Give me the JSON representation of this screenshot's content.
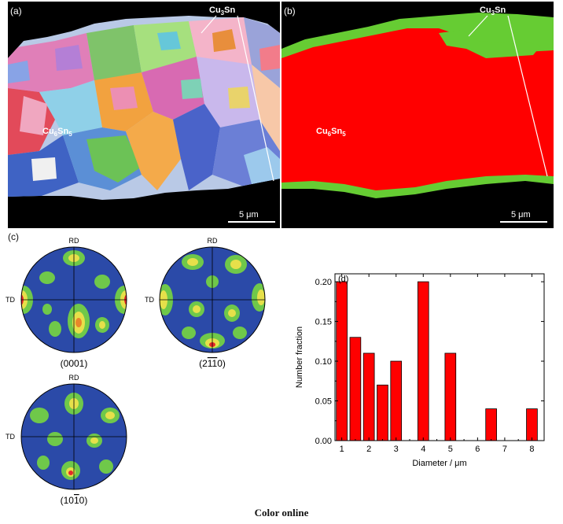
{
  "panel_a": {
    "label": "(a)",
    "phase_top_main": "Cu",
    "phase_top_sub": "3",
    "phase_top_tail": "Sn",
    "phase_mid_main": "Cu",
    "phase_mid_sub": "6",
    "phase_mid_tail": "Sn",
    "phase_mid_sub2": "5",
    "scale": "5 μm"
  },
  "panel_b": {
    "label": "(b)",
    "phase_top_main": "Cu",
    "phase_top_sub": "3",
    "phase_top_tail": "Sn",
    "phase_mid_main": "Cu",
    "phase_mid_sub": "6",
    "phase_mid_tail": "Sn",
    "phase_mid_sub2": "5",
    "scale": "5 μm",
    "colors": {
      "background": "#000000",
      "main": "#ff0000",
      "rim": "#66cc33"
    }
  },
  "panel_c": {
    "label": "(c)",
    "poles": [
      {
        "rd": "RD",
        "td": "TD",
        "caption": "(0001)"
      },
      {
        "rd": "RD",
        "td": "TD",
        "caption_pre": "(2",
        "caption_bar": "11",
        "caption_post": "0)"
      },
      {
        "rd": "RD",
        "td": "TD",
        "caption_pre": "(10",
        "caption_bar": "1",
        "caption_post": "0)"
      }
    ]
  },
  "chart_data": {
    "type": "bar",
    "panel_label": "(d)",
    "xlabel": "Diameter / μm",
    "ylabel": "Number fraction",
    "xlim": [
      0.75,
      8.45
    ],
    "ylim": [
      0,
      0.21
    ],
    "xticks": [
      "1",
      "2",
      "3",
      "4",
      "5",
      "6",
      "7",
      "8"
    ],
    "yticks": [
      "0.00",
      "0.05",
      "0.10",
      "0.15",
      "0.20"
    ],
    "x": [
      1.0,
      1.5,
      2.0,
      2.5,
      3.0,
      4.0,
      5.0,
      6.5,
      8.0
    ],
    "values": [
      0.2,
      0.13,
      0.11,
      0.07,
      0.1,
      0.2,
      0.11,
      0.04,
      0.04
    ],
    "bar_width": 0.4,
    "bar_color": "#ff0000",
    "grid": false
  },
  "caption": "Color online"
}
